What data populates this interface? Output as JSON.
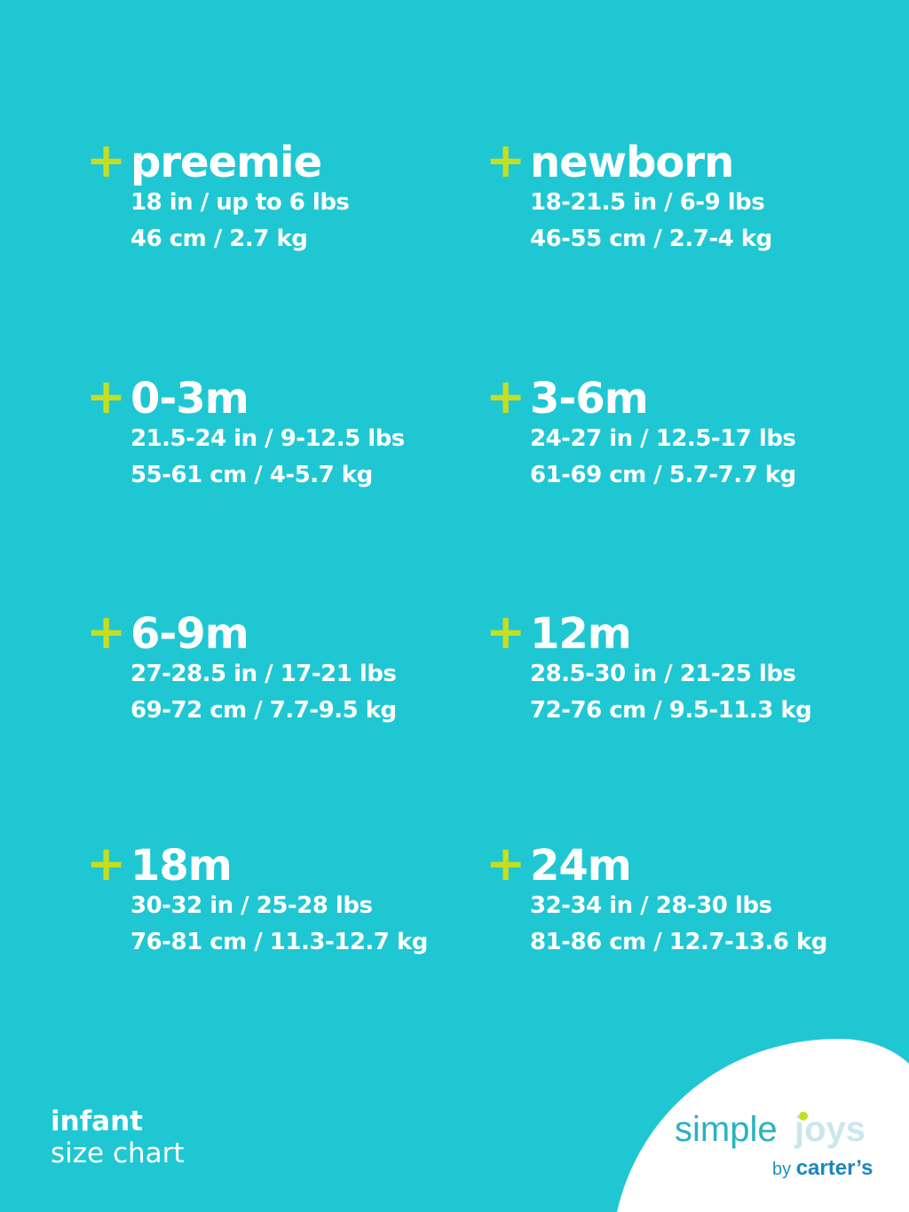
{
  "colors": {
    "background": "#1fc7d3",
    "plus": "#c5de22",
    "text": "#ffffff"
  },
  "sizes": [
    {
      "name": "preemie",
      "imperial": "18 in / up to 6 lbs",
      "metric": "46 cm / 2.7 kg"
    },
    {
      "name": "newborn",
      "imperial": "18-21.5 in / 6-9 lbs",
      "metric": "46-55 cm / 2.7-4 kg"
    },
    {
      "name": "0-3m",
      "imperial": "21.5-24 in / 9-12.5 lbs",
      "metric": "55-61 cm / 4-5.7 kg"
    },
    {
      "name": "3-6m",
      "imperial": "24-27 in / 12.5-17 lbs",
      "metric": "61-69 cm / 5.7-7.7 kg"
    },
    {
      "name": "6-9m",
      "imperial": "27-28.5 in / 17-21 lbs",
      "metric": "69-72 cm / 7.7-9.5 kg"
    },
    {
      "name": "12m",
      "imperial": "28.5-30 in / 21-25 lbs",
      "metric": "72-76 cm / 9.5-11.3 kg"
    },
    {
      "name": "18m",
      "imperial": "30-32 in / 25-28 lbs",
      "metric": "76-81 cm / 11.3-12.7 kg"
    },
    {
      "name": "24m",
      "imperial": "32-34 in / 28-30 lbs",
      "metric": "81-86 cm / 12.7-13.6 kg"
    }
  ],
  "plus_symbol": "+",
  "footer": {
    "line1": "infant",
    "line2": "size chart"
  },
  "logo": {
    "simple": "simple",
    "joys": "joys",
    "by": "by",
    "brand": "carter’s"
  }
}
